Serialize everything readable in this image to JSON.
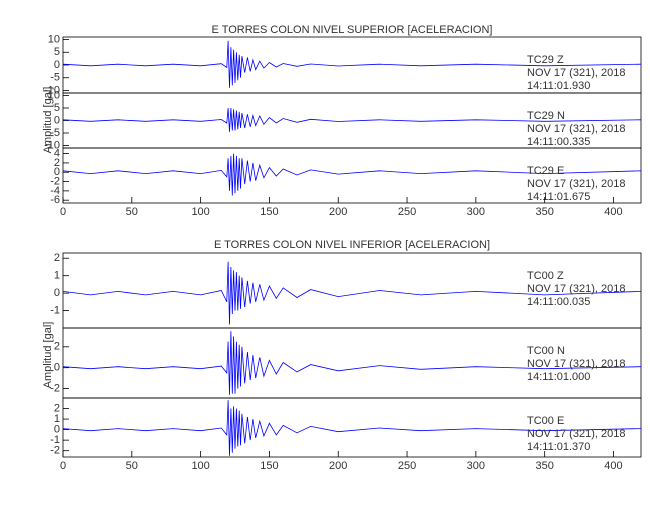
{
  "chart_data": [
    {
      "type": "line",
      "title": "E TORRES COLON NIVEL SUPERIOR [ACELERACION]",
      "ylabel": "Amplitud [gal]",
      "xlim": [
        0,
        420
      ],
      "xticks": [
        0,
        50,
        100,
        150,
        200,
        250,
        300,
        350,
        400
      ],
      "x": [
        0,
        20,
        40,
        60,
        80,
        100,
        115,
        119,
        120,
        121,
        122,
        123,
        124,
        125,
        126,
        127,
        128,
        129,
        130,
        132,
        134,
        136,
        138,
        140,
        143,
        146,
        150,
        155,
        160,
        170,
        180,
        200,
        230,
        260,
        300,
        350,
        420
      ],
      "series": [
        {
          "color": "#0000ff",
          "ylim": [
            -11,
            11
          ],
          "yticks": [
            -10,
            -5,
            0,
            5,
            10
          ],
          "annotation": [
            "TC29   Z",
            "NOV 17 (321), 2018",
            "14:11:01.930"
          ],
          "values": [
            0.3,
            -0.3,
            0.3,
            -0.3,
            0.3,
            -0.3,
            0.5,
            -1,
            9.5,
            -9,
            7,
            -8,
            6,
            -7,
            5,
            -6,
            4,
            -5,
            3.5,
            -3,
            3,
            -2.5,
            2,
            -1.8,
            1.5,
            -1.2,
            1,
            -0.8,
            0.6,
            -0.5,
            0.4,
            -0.4,
            0.3,
            -0.3,
            0.3,
            -0.3,
            0.3
          ]
        },
        {
          "color": "#0000ff",
          "ylim": [
            -11,
            11
          ],
          "yticks": [
            -10,
            -5,
            0,
            5,
            10
          ],
          "annotation": [
            "TC29   N",
            "NOV 17 (321), 2018",
            "14:11:00.335"
          ],
          "values": [
            0.3,
            -0.3,
            0.3,
            -0.3,
            0.3,
            -0.3,
            0.4,
            -1,
            5,
            -4.5,
            5,
            -4,
            4.5,
            -4,
            4,
            -3.5,
            3.5,
            -3,
            3,
            -3,
            2.5,
            -2.5,
            2,
            -2,
            1.8,
            -1.5,
            1.2,
            -1,
            0.8,
            -0.7,
            0.5,
            -0.4,
            0.3,
            -0.3,
            0.3,
            -0.3,
            0.3
          ]
        },
        {
          "color": "#0000ff",
          "ylim": [
            -6.6,
            5.2
          ],
          "yticks": [
            -6,
            -4,
            -2,
            0,
            2,
            4
          ],
          "annotation": [
            "TC29   E",
            "NOV 17 (321), 2018",
            "14:11:01.675"
          ],
          "values": [
            0.3,
            -0.3,
            0.3,
            -0.3,
            0.3,
            -0.3,
            0.4,
            -1,
            3,
            -4,
            3.5,
            -5,
            4,
            -4.5,
            3.5,
            -4,
            3,
            -3.5,
            3,
            -2.5,
            2.5,
            -2,
            2,
            -1.8,
            1.5,
            -1.2,
            1,
            -0.8,
            0.7,
            -0.6,
            0.5,
            -0.4,
            0.3,
            -0.3,
            0.3,
            -0.3,
            0.3
          ]
        }
      ]
    },
    {
      "type": "line",
      "title": "E TORRES COLON NIVEL INFERIOR [ACELERACION]",
      "ylabel": "Amplitud [gal]",
      "xlim": [
        0,
        420
      ],
      "xticks": [
        0,
        50,
        100,
        150,
        200,
        250,
        300,
        350,
        400
      ],
      "x": [
        0,
        20,
        40,
        60,
        80,
        100,
        115,
        119,
        120,
        121,
        122,
        123,
        124,
        125,
        126,
        127,
        128,
        129,
        130,
        132,
        134,
        136,
        138,
        140,
        143,
        146,
        150,
        155,
        160,
        170,
        180,
        200,
        230,
        260,
        300,
        350,
        420
      ],
      "series": [
        {
          "color": "#0000ff",
          "ylim": [
            -2,
            2.3
          ],
          "yticks": [
            -1,
            0,
            1,
            2
          ],
          "annotation": [
            "TC00   Z",
            "NOV 17 (321), 2018",
            "14:11:00.035"
          ],
          "values": [
            0.1,
            -0.1,
            0.1,
            -0.1,
            0.1,
            -0.1,
            0.15,
            -0.5,
            1.8,
            -1.8,
            1.5,
            -1.2,
            1.3,
            -1,
            1.2,
            -1,
            1,
            -0.9,
            0.9,
            -0.8,
            0.7,
            -0.6,
            0.6,
            -0.5,
            0.5,
            -0.4,
            0.4,
            -0.3,
            0.3,
            -0.25,
            0.2,
            -0.2,
            0.15,
            -0.1,
            0.1,
            -0.1,
            0.1
          ]
        },
        {
          "color": "#0000ff",
          "ylim": [
            -2.9,
            3.8
          ],
          "yticks": [
            -2,
            0,
            2
          ],
          "annotation": [
            "TC00   N",
            "NOV 17 (321), 2018",
            "14:11:01.000"
          ],
          "values": [
            0.1,
            -0.1,
            0.1,
            -0.1,
            0.1,
            -0.1,
            0.15,
            -0.5,
            2.5,
            -2.6,
            3.5,
            -2.5,
            3,
            -2.5,
            2.5,
            -2,
            2.2,
            -1.8,
            2,
            -1.5,
            1.5,
            -1.2,
            1.2,
            -1,
            1,
            -0.8,
            0.7,
            -0.6,
            0.5,
            -0.4,
            0.3,
            -0.3,
            0.2,
            -0.15,
            0.1,
            -0.1,
            0.1
          ]
        },
        {
          "color": "#0000ff",
          "ylim": [
            -2.6,
            3
          ],
          "yticks": [
            -2,
            -1,
            0,
            1,
            2
          ],
          "annotation": [
            "TC00   E",
            "NOV 17 (321), 2018",
            "14:11:01.370"
          ],
          "values": [
            0.1,
            -0.1,
            0.1,
            -0.1,
            0.1,
            -0.1,
            0.15,
            -0.5,
            2.8,
            -2.5,
            2,
            -2.2,
            2.2,
            -1.8,
            2,
            -1.6,
            1.8,
            -1.5,
            1.5,
            -1.3,
            1.2,
            -1,
            1,
            -0.8,
            0.8,
            -0.6,
            0.6,
            -0.5,
            0.4,
            -0.3,
            0.3,
            -0.2,
            0.15,
            -0.1,
            0.1,
            -0.1,
            0.1
          ]
        }
      ]
    }
  ]
}
